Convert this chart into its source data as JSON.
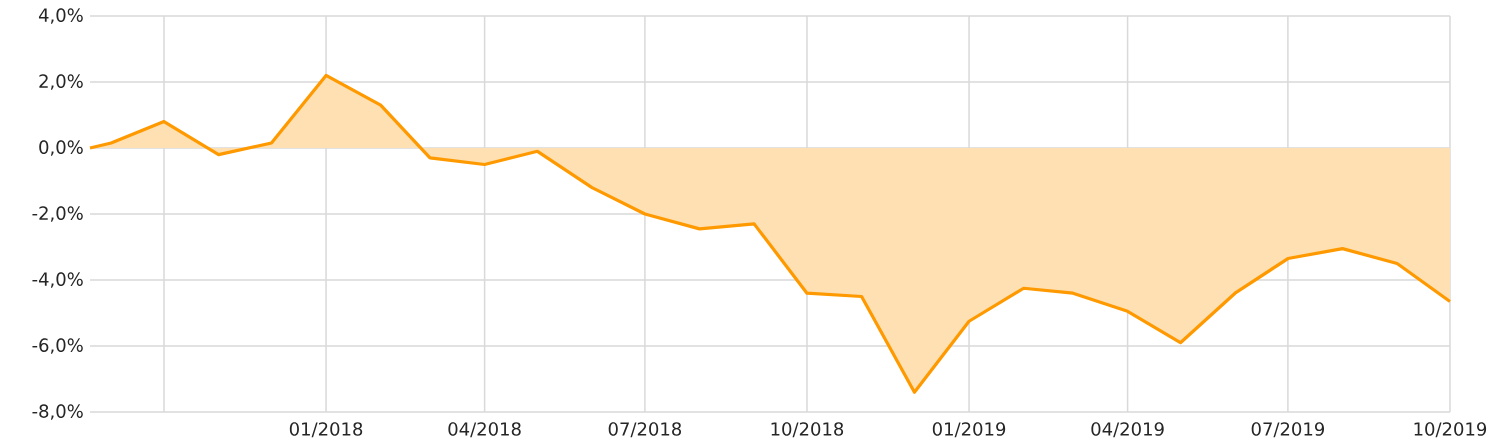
{
  "chart_data": {
    "type": "area",
    "x": [
      "2017-08-20",
      "2017-09-01",
      "2017-10-01",
      "2017-11-01",
      "2017-12-01",
      "2018-01-01",
      "2018-02-01",
      "2018-03-01",
      "2018-04-01",
      "2018-05-01",
      "2018-06-01",
      "2018-07-01",
      "2018-08-01",
      "2018-09-01",
      "2018-10-01",
      "2018-11-01",
      "2018-12-01",
      "2019-01-01",
      "2019-02-01",
      "2019-03-01",
      "2019-04-01",
      "2019-05-01",
      "2019-06-01",
      "2019-07-01",
      "2019-08-01",
      "2019-09-01",
      "2019-10-01"
    ],
    "series": [
      {
        "color": "#ff9900",
        "values": [
          0.0,
          0.15,
          0.8,
          -0.2,
          0.15,
          2.2,
          1.3,
          -0.3,
          -0.5,
          -0.1,
          -1.2,
          -2.0,
          -2.45,
          -2.3,
          -4.4,
          -4.5,
          -7.4,
          -5.25,
          -4.25,
          -4.4,
          -4.95,
          -5.9,
          -4.4,
          -3.35,
          -3.05,
          -3.5,
          -4.65
        ]
      }
    ],
    "xlim": [
      "2017-08-20",
      "2019-10-01"
    ],
    "xticks": [
      {
        "value": "2017-10-01",
        "label": null
      },
      {
        "value": "2018-01-01",
        "label": "01/2018"
      },
      {
        "value": "2018-04-01",
        "label": "04/2018"
      },
      {
        "value": "2018-07-01",
        "label": "07/2018"
      },
      {
        "value": "2018-10-01",
        "label": "10/2018"
      },
      {
        "value": "2019-01-01",
        "label": "01/2019"
      },
      {
        "value": "2019-04-01",
        "label": "04/2019"
      },
      {
        "value": "2019-07-01",
        "label": "07/2019"
      },
      {
        "value": "2019-10-01",
        "label": "10/2019"
      }
    ],
    "ylim": [
      -8,
      4
    ],
    "yticks": [
      {
        "value": -8,
        "label": "-8,0%"
      },
      {
        "value": -6,
        "label": "-6,0%"
      },
      {
        "value": -4,
        "label": "-4,0%"
      },
      {
        "value": -2,
        "label": "-2,0%"
      },
      {
        "value": 0,
        "label": "0,0%"
      },
      {
        "value": 2,
        "label": "2,0%"
      },
      {
        "value": 4,
        "label": "4,0%"
      }
    ],
    "grid": true
  }
}
